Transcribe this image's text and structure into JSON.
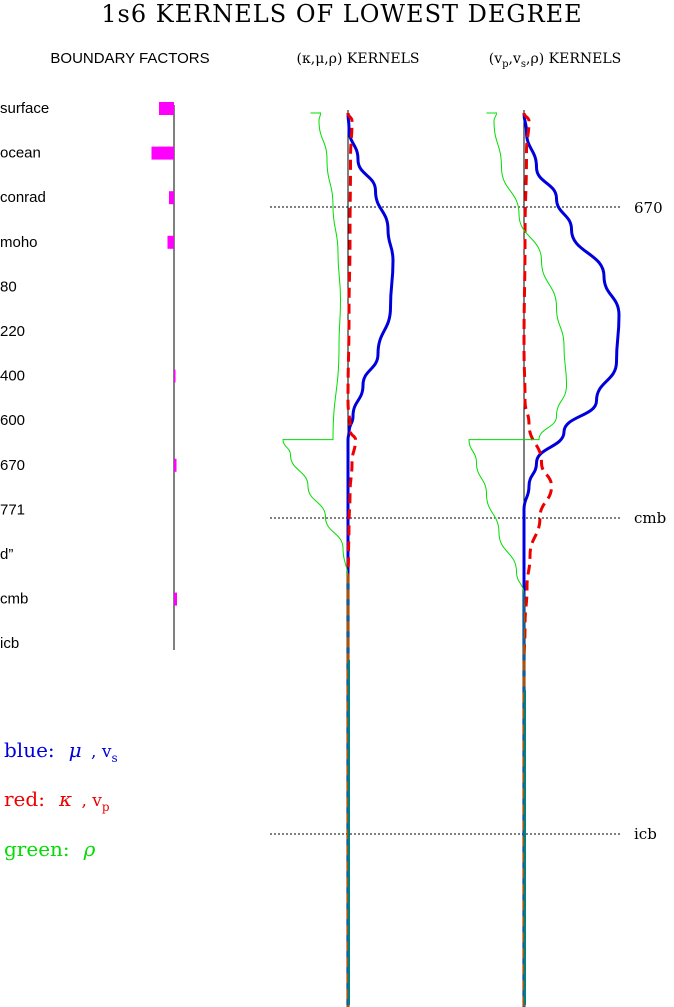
{
  "title": "1s6 KERNELS OF LOWEST DEGREE",
  "boundary_panel": {
    "heading": "BOUNDARY FACTORS",
    "labels": [
      "surface",
      "ocean",
      "conrad",
      "moho",
      "80",
      "220",
      "400",
      "600",
      "670",
      "771",
      "d”",
      "cmb",
      "icb"
    ],
    "bar_color": "#ff00ff"
  },
  "panel_headings": {
    "kmr": "(κ,μ,ρ)  KERNELS",
    "vvr_open": "(v",
    "vvr_sub_p": "p",
    "vvr_comma1": ",v",
    "vvr_sub_s": "s",
    "vvr_close": ",ρ)  KERNELS"
  },
  "depth_markers": [
    "670",
    "cmb",
    "icb"
  ],
  "legend": {
    "blue": {
      "label": "blue:",
      "sym": "μ",
      "sep": " , v",
      "sub": "s",
      "color": "#0000dd"
    },
    "red": {
      "label": "red:",
      "sym": "κ",
      "sep": " , v",
      "sub": "p",
      "color": "#ee0000"
    },
    "green": {
      "label": "green:",
      "sym": "ρ",
      "color": "#00dd00"
    }
  },
  "chart_data": [
    {
      "type": "bar",
      "title": "BOUNDARY FACTORS",
      "categories": [
        "surface",
        "ocean",
        "conrad",
        "moho",
        "80",
        "220",
        "400",
        "600",
        "670",
        "771",
        "d”",
        "cmb",
        "icb"
      ],
      "values": [
        -0.3,
        -0.45,
        -0.1,
        -0.13,
        0,
        0,
        0.03,
        0,
        0.05,
        0,
        0,
        0.06,
        0
      ]
    },
    {
      "type": "line",
      "title": "(κ,μ,ρ)  KERNELS",
      "x_unit": "relative amplitude",
      "y_markers": [
        "670",
        "cmb",
        "icb"
      ],
      "series": [
        {
          "name": "μ",
          "color": "#0000dd",
          "x": [
            0,
            0.02,
            0.2,
            0.55,
            0.8,
            0.9,
            0.85,
            0.6,
            0.3,
            0.1,
            0.02,
            0,
            0,
            0,
            0
          ],
          "y": [
            0,
            0.1,
            0.3,
            0.5,
            0.75,
            0.95,
            1.25,
            1.55,
            1.75,
            1.95,
            2.05,
            2.1,
            2.5,
            2.85,
            5.8
          ]
        },
        {
          "name": "κ",
          "color": "#ee0000",
          "x": [
            0,
            0.08,
            0.05,
            0.04,
            0.02,
            0,
            0.05,
            0.15,
            0.08,
            0.04,
            0.02,
            0.01,
            0,
            0
          ],
          "y": [
            0,
            0.05,
            0.3,
            0.8,
            1.3,
            1.85,
            2.05,
            2.1,
            2.25,
            2.45,
            2.65,
            2.85,
            3,
            5.8
          ]
        },
        {
          "name": "ρ",
          "color": "#00dd00",
          "x": [
            -0.75,
            -0.55,
            -0.58,
            -0.42,
            -0.3,
            -0.2,
            -0.15,
            -0.18,
            -0.3,
            -1.3,
            -1.15,
            -0.8,
            -0.45,
            -0.1,
            0,
            0
          ],
          "y": [
            0,
            0,
            0.05,
            0.3,
            0.6,
            0.9,
            1.2,
            1.5,
            2.1,
            2.1,
            2.2,
            2.4,
            2.6,
            2.8,
            3,
            5.8
          ]
        }
      ]
    },
    {
      "type": "line",
      "title": "(vp,vs,ρ)  KERNELS",
      "x_unit": "relative amplitude",
      "y_markers": [
        "670",
        "cmb",
        "icb"
      ],
      "series": [
        {
          "name": "vs",
          "color": "#0000dd",
          "x": [
            0,
            0.05,
            0.25,
            0.65,
            0.95,
            1.6,
            1.9,
            1.85,
            1.45,
            0.8,
            0.25,
            0.1,
            0,
            0,
            0,
            0
          ],
          "y": [
            0,
            0.12,
            0.35,
            0.55,
            0.75,
            1.05,
            1.3,
            1.6,
            1.85,
            2.05,
            2.25,
            2.4,
            2.55,
            3,
            3.2,
            5.8
          ]
        },
        {
          "name": "vp",
          "color": "#ee0000",
          "x": [
            0,
            0.1,
            0.05,
            0.02,
            0,
            0.02,
            0.1,
            0.35,
            0.55,
            0.32,
            0.12,
            0.06,
            0.02,
            0,
            0
          ],
          "y": [
            0,
            0.05,
            0.25,
            0.8,
            1.5,
            1.85,
            2.0,
            2.25,
            2.4,
            2.6,
            2.85,
            3.05,
            3.3,
            3.55,
            5.8
          ]
        },
        {
          "name": "ρ",
          "color": "#00dd00",
          "x": [
            -0.75,
            -0.55,
            -0.6,
            -0.45,
            -0.1,
            0.35,
            0.65,
            0.8,
            0.85,
            0.65,
            0.3,
            -1.1,
            -0.95,
            -0.75,
            -0.5,
            -0.15,
            0,
            0
          ],
          "y": [
            0,
            0,
            0.05,
            0.35,
            0.65,
            0.95,
            1.25,
            1.5,
            1.75,
            1.95,
            2.1,
            2.1,
            2.25,
            2.45,
            2.7,
            2.95,
            3.1,
            5.8
          ]
        }
      ]
    }
  ]
}
